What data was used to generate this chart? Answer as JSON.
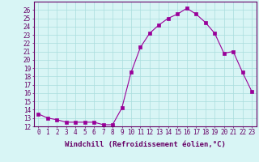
{
  "x": [
    0,
    1,
    2,
    3,
    4,
    5,
    6,
    7,
    8,
    9,
    10,
    11,
    12,
    13,
    14,
    15,
    16,
    17,
    18,
    19,
    20,
    21,
    22,
    23
  ],
  "y": [
    13.5,
    13.0,
    12.8,
    12.5,
    12.5,
    12.5,
    12.5,
    12.2,
    12.2,
    14.2,
    18.5,
    21.5,
    23.2,
    24.2,
    25.0,
    25.5,
    26.2,
    25.5,
    24.5,
    23.2,
    20.8,
    21.0,
    18.5,
    16.2
  ],
  "line_color": "#990099",
  "marker": "s",
  "marker_size": 2.5,
  "bg_color": "#d8f5f5",
  "grid_color": "#aadddd",
  "xlabel": "Windchill (Refroidissement éolien,°C)",
  "ylabel": "",
  "title": "",
  "xlim": [
    -0.5,
    23.5
  ],
  "ylim": [
    12,
    27
  ],
  "yticks": [
    12,
    13,
    14,
    15,
    16,
    17,
    18,
    19,
    20,
    21,
    22,
    23,
    24,
    25,
    26
  ],
  "xticks": [
    0,
    1,
    2,
    3,
    4,
    5,
    6,
    7,
    8,
    9,
    10,
    11,
    12,
    13,
    14,
    15,
    16,
    17,
    18,
    19,
    20,
    21,
    22,
    23
  ],
  "tick_label_size": 5.5,
  "xlabel_size": 6.5,
  "axis_color": "#660066",
  "spine_color": "#660066"
}
